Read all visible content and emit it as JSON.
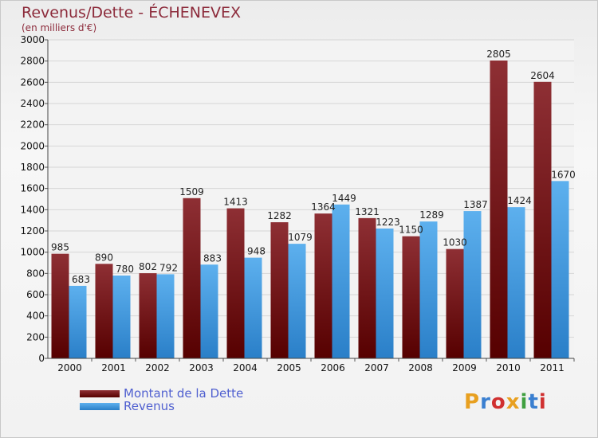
{
  "title": "Revenus/Dette - ÉCHENEVEX",
  "subtitle": "(en milliers d'€)",
  "chart_data": {
    "type": "bar",
    "categories": [
      "2000",
      "2001",
      "2002",
      "2003",
      "2004",
      "2005",
      "2006",
      "2007",
      "2008",
      "2009",
      "2010",
      "2011"
    ],
    "series": [
      {
        "name": "Montant de la Dette",
        "values": [
          985,
          890,
          802,
          1509,
          1413,
          1282,
          1364,
          1321,
          1150,
          1030,
          2805,
          2604
        ],
        "color": "#7a1f22"
      },
      {
        "name": "Revenus",
        "values": [
          683,
          780,
          792,
          883,
          948,
          1079,
          1449,
          1223,
          1289,
          1387,
          1424,
          1670
        ],
        "color": "#4a9fe0"
      }
    ],
    "ylim": [
      0,
      3000
    ],
    "yticks": [
      0,
      200,
      400,
      600,
      800,
      1000,
      1200,
      1400,
      1600,
      1800,
      2000,
      2200,
      2400,
      2600,
      2800,
      3000
    ],
    "grid": true,
    "legend_position": "bottom-left"
  },
  "logo": {
    "text": "Proxiti",
    "letter_colors": [
      "#e8a020",
      "#3a7fd0",
      "#d03030",
      "#e8a020",
      "#40a040",
      "#3a7fd0",
      "#d03030"
    ]
  }
}
